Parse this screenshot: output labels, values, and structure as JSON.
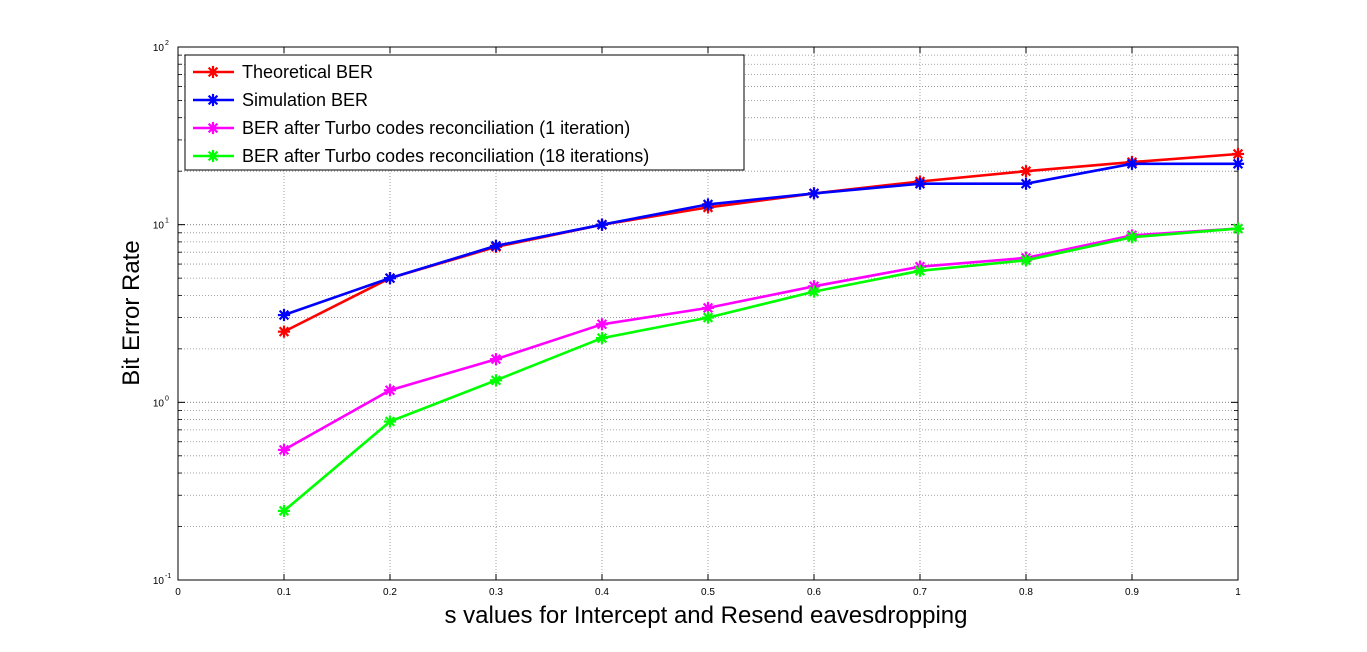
{
  "chart_data": {
    "type": "line",
    "title": "",
    "xlabel": "s values for Intercept and Resend eavesdropping",
    "ylabel": "Bit Error Rate",
    "xlim": [
      0,
      1
    ],
    "ylim": [
      0.1,
      100
    ],
    "yscale": "log",
    "grid": true,
    "legend_position": "top-left",
    "x_ticks": [
      "0",
      "0.1",
      "0.2",
      "0.3",
      "0.4",
      "0.5",
      "0.6",
      "0.7",
      "0.8",
      "0.9",
      "1"
    ],
    "y_ticks": [
      {
        "base": "10",
        "exp": "-1"
      },
      {
        "base": "10",
        "exp": "0"
      },
      {
        "base": "10",
        "exp": "1"
      },
      {
        "base": "10",
        "exp": "2"
      }
    ],
    "x": [
      0.1,
      0.2,
      0.3,
      0.4,
      0.5,
      0.6,
      0.7,
      0.8,
      0.9,
      1.0
    ],
    "series": [
      {
        "name": "Theoretical BER",
        "color": "#ff0000",
        "values": [
          2.5,
          5.0,
          7.5,
          10.0,
          12.5,
          15.0,
          17.5,
          20.0,
          22.5,
          25.0
        ]
      },
      {
        "name": "Simulation BER",
        "color": "#0000ff",
        "values": [
          3.1,
          5.0,
          7.6,
          10.0,
          13.0,
          15.0,
          17.0,
          17.0,
          22.0,
          22.0
        ]
      },
      {
        "name": "BER after Turbo codes reconciliation (1 iteration)",
        "color": "#ff00ff",
        "values": [
          0.54,
          1.17,
          1.75,
          2.75,
          3.4,
          4.5,
          5.8,
          6.5,
          8.7,
          9.5
        ]
      },
      {
        "name": "BER after Turbo codes reconciliation (18 iterations)",
        "color": "#00ff00",
        "values": [
          0.245,
          0.78,
          1.33,
          2.3,
          3.0,
          4.2,
          5.5,
          6.3,
          8.5,
          9.5
        ]
      }
    ]
  }
}
